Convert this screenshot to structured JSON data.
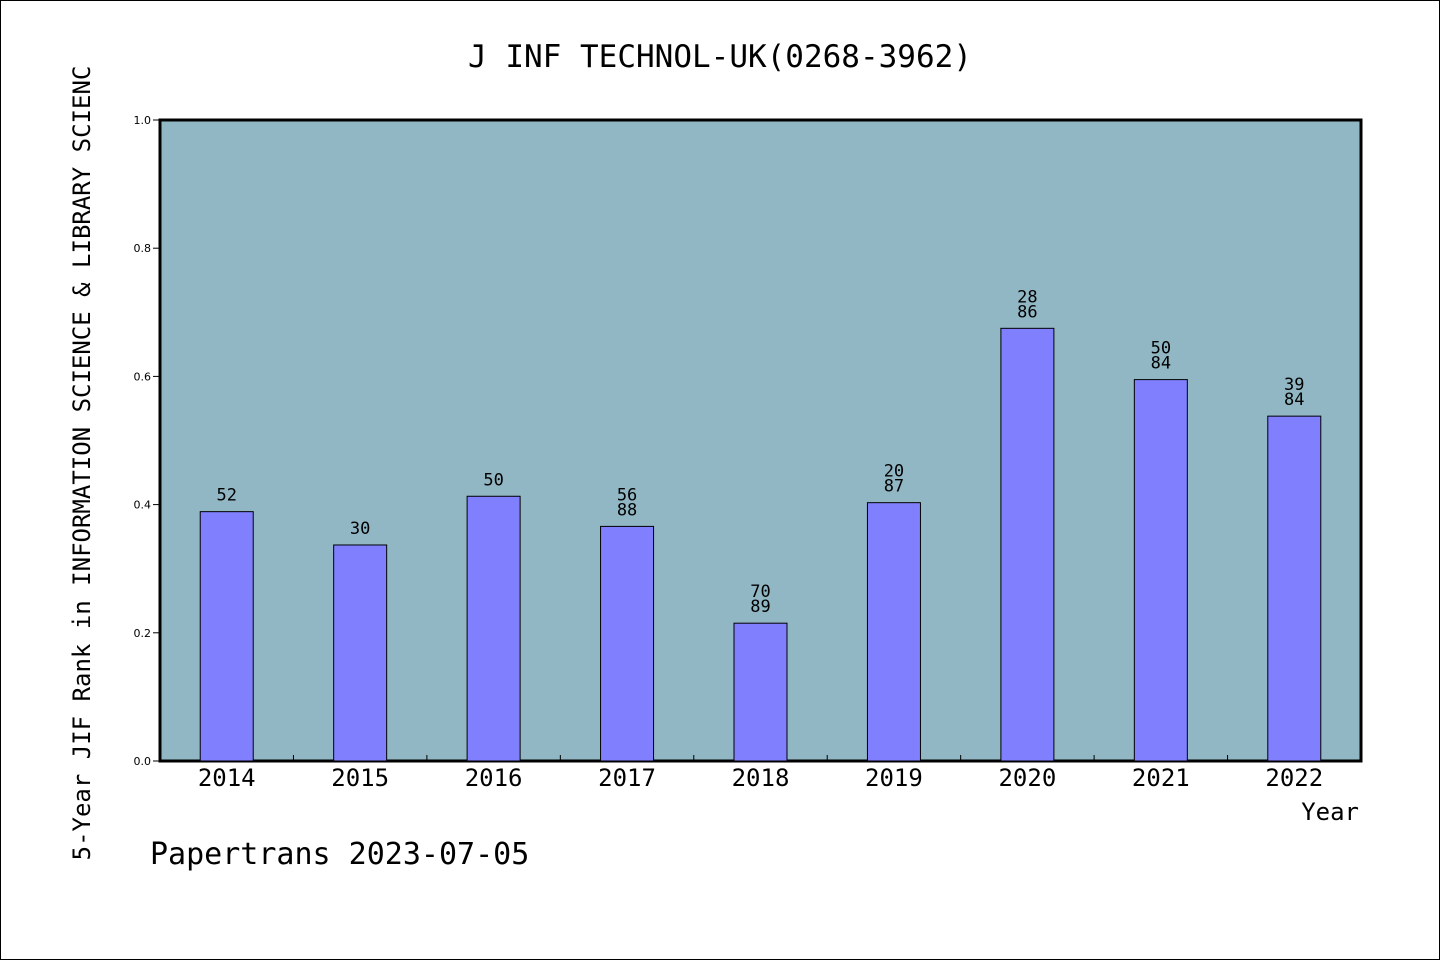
{
  "chart_data": {
    "type": "bar",
    "title": "J INF TECHNOL-UK(0268-3962)",
    "xlabel": "Year",
    "ylabel": "5-Year JIF Rank in INFORMATION SCIENCE & LIBRARY SCIENC",
    "ylim": [
      0,
      1.0
    ],
    "yticks": [
      "0.0",
      "0.2",
      "0.4",
      "0.6",
      "0.8",
      "1.0"
    ],
    "categories": [
      "2014",
      "2015",
      "2016",
      "2017",
      "2018",
      "2019",
      "2020",
      "2021",
      "2022"
    ],
    "values": [
      0.389,
      0.337,
      0.413,
      0.366,
      0.215,
      0.403,
      0.675,
      0.595,
      0.538
    ],
    "bar_labels": [
      [
        "52"
      ],
      [
        "30"
      ],
      [
        "50"
      ],
      [
        "56",
        "88"
      ],
      [
        "70",
        "89"
      ],
      [
        "20",
        "87"
      ],
      [
        "28",
        "86"
      ],
      [
        "50",
        "84"
      ],
      [
        "39",
        "84"
      ]
    ],
    "footer": "Papertrans 2023-07-05",
    "colors": {
      "plot_background": "#91b7c5",
      "bar_fill": "#8080ff",
      "bar_stroke": "#000000",
      "text": "#000000"
    }
  }
}
